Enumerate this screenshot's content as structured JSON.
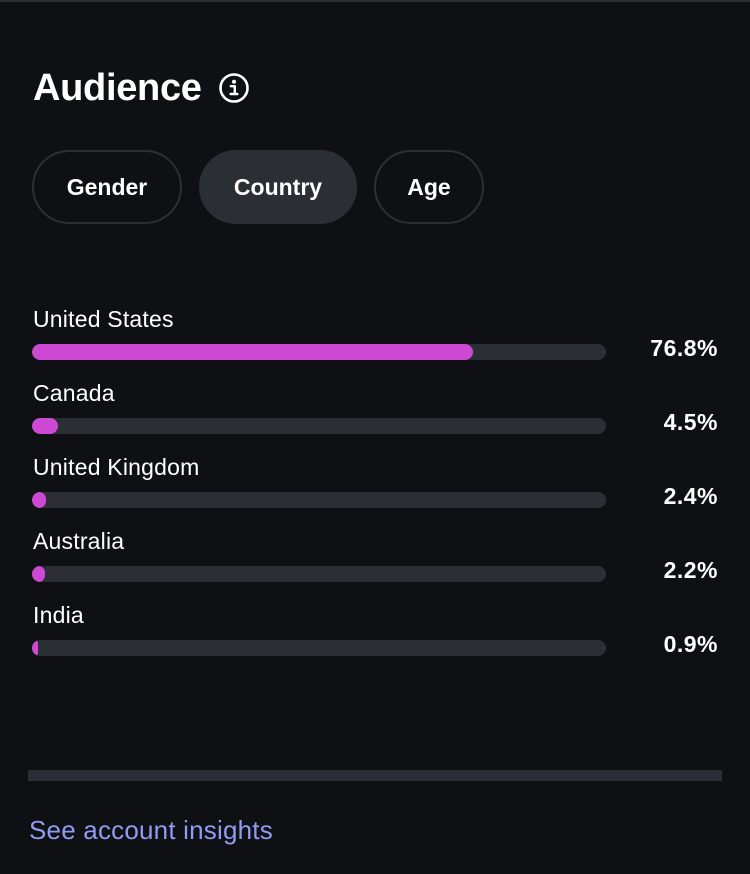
{
  "header": {
    "title": "Audience",
    "info_icon": "info-circle-icon"
  },
  "tabs": [
    {
      "label": "Gender",
      "active": false
    },
    {
      "label": "Country",
      "active": true
    },
    {
      "label": "Age",
      "active": false
    }
  ],
  "rows": [
    {
      "label": "United States",
      "value": "76.8%",
      "percent": 76.8
    },
    {
      "label": "Canada",
      "value": "4.5%",
      "percent": 4.5
    },
    {
      "label": "United Kingdom",
      "value": "2.4%",
      "percent": 2.4
    },
    {
      "label": "Australia",
      "value": "2.2%",
      "percent": 2.2
    },
    {
      "label": "India",
      "value": "0.9%",
      "percent": 0.9
    }
  ],
  "footer": {
    "link": "See account insights"
  },
  "colors": {
    "background": "#0e1014",
    "bar_fill": "#cd48d4",
    "bar_track": "#2b2e34",
    "link": "#8f9cf0"
  }
}
